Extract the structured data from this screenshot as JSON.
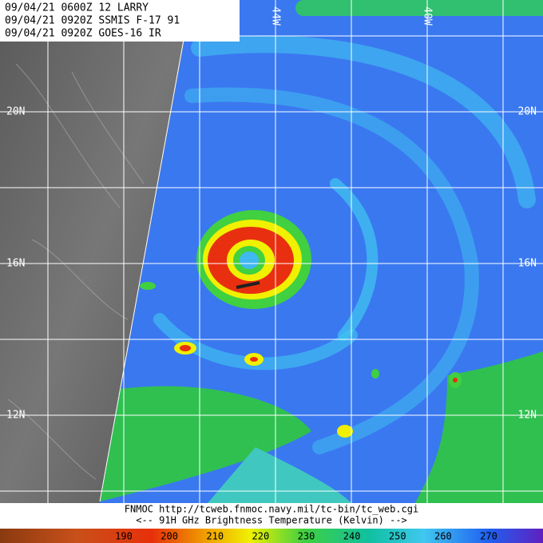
{
  "header": {
    "lines": [
      "09/04/21 0600Z  12 LARRY",
      "09/04/21 0920Z  SSMIS F-17 91",
      "09/04/21 0920Z  GOES-16 IR"
    ]
  },
  "grid": {
    "lon_labels": [
      "44W",
      "40W"
    ],
    "lat_labels": [
      "20N",
      "16N",
      "12N"
    ]
  },
  "footer": {
    "source": "FNMOC  http://tcweb.fnmoc.navy.mil/tc-bin/tc_web.cgi",
    "caption": "<--   91H GHz Brightness Temperature (Kelvin)   -->"
  },
  "colorbar": {
    "labels": [
      190,
      200,
      210,
      220,
      230,
      240,
      250,
      260,
      270
    ]
  }
}
